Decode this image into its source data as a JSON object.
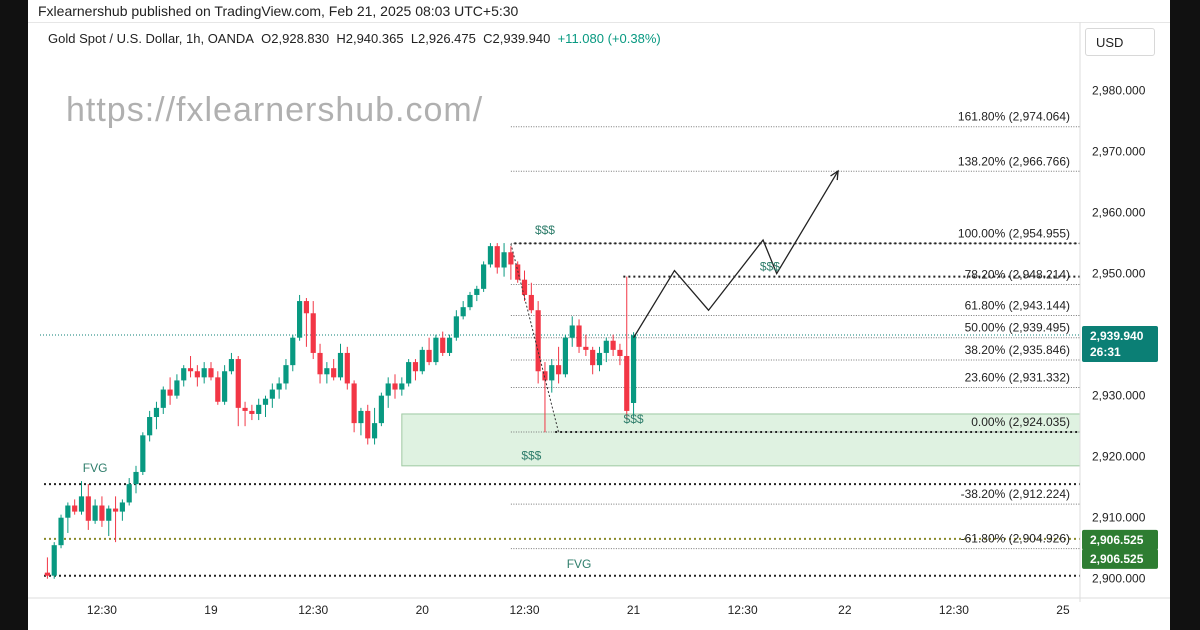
{
  "header": {
    "publish_line": "Fxlearnershub published on TradingView.com, Feb 21, 2025 08:03 UTC+5:30"
  },
  "chart_data": {
    "type": "candlestick",
    "symbol": "Gold Spot / U.S. Dollar, 1h, OANDA",
    "ohlc_text": {
      "o": "O2,928.830",
      "h": "H2,940.365",
      "l": "L2,926.475",
      "c": "C2,939.940",
      "change": "+11.080 (+0.38%)"
    },
    "currency": "USD",
    "watermark": "https://fxlearnershub.com/",
    "ylim": [
      2897.5,
      2985
    ],
    "y_ticks": [
      "2,900.000",
      "2,910.000",
      "2,920.000",
      "2,930.000",
      "2,940.000",
      "2,950.000",
      "2,960.000",
      "2,970.000",
      "2,980.000"
    ],
    "y_tick_values": [
      2900,
      2910,
      2920,
      2930,
      2940,
      2950,
      2960,
      2970,
      2980
    ],
    "x_ticks": [
      "12:30",
      "19",
      "12:30",
      "20",
      "12:30",
      "21",
      "12:30",
      "22",
      "12:30",
      "25"
    ],
    "x_tick_bars": [
      8,
      24,
      39,
      55,
      70,
      86,
      102,
      117,
      133,
      149
    ],
    "bar_range": [
      0,
      152
    ],
    "colors": {
      "up": "#089981",
      "down": "#f23645",
      "zone": "#dff2e1",
      "grid": "#555555"
    },
    "candles": [
      [
        2901.0,
        2903.5,
        2900.0,
        2900.5
      ],
      [
        2900.5,
        2906.0,
        2900.0,
        2905.5
      ],
      [
        2905.5,
        2910.5,
        2905.0,
        2910.0
      ],
      [
        2910.0,
        2912.5,
        2907.5,
        2912.0
      ],
      [
        2912.0,
        2913.0,
        2910.5,
        2911.0
      ],
      [
        2911.0,
        2916.0,
        2910.5,
        2913.5
      ],
      [
        2913.5,
        2915.5,
        2908.0,
        2909.5
      ],
      [
        2909.5,
        2913.0,
        2909.0,
        2912.0
      ],
      [
        2912.0,
        2913.5,
        2908.5,
        2909.5
      ],
      [
        2909.5,
        2912.0,
        2907.0,
        2911.5
      ],
      [
        2911.5,
        2913.5,
        2906.0,
        2911.0
      ],
      [
        2911.0,
        2913.0,
        2909.5,
        2912.5
      ],
      [
        2912.5,
        2916.5,
        2912.0,
        2915.5
      ],
      [
        2915.5,
        2918.5,
        2914.0,
        2917.5
      ],
      [
        2917.5,
        2924.0,
        2917.0,
        2923.5
      ],
      [
        2923.5,
        2927.5,
        2922.5,
        2926.5
      ],
      [
        2926.5,
        2929.0,
        2924.5,
        2928.0
      ],
      [
        2928.0,
        2931.5,
        2927.0,
        2931.0
      ],
      [
        2931.0,
        2933.0,
        2928.5,
        2930.0
      ],
      [
        2930.0,
        2933.5,
        2929.5,
        2932.5
      ],
      [
        2932.5,
        2935.0,
        2931.5,
        2934.5
      ],
      [
        2934.5,
        2936.5,
        2933.0,
        2934.0
      ],
      [
        2934.0,
        2935.0,
        2931.5,
        2933.0
      ],
      [
        2933.0,
        2935.5,
        2932.0,
        2934.5
      ],
      [
        2934.5,
        2935.5,
        2932.5,
        2933.0
      ],
      [
        2933.0,
        2934.0,
        2928.5,
        2929.0
      ],
      [
        2929.0,
        2935.0,
        2928.5,
        2934.0
      ],
      [
        2934.0,
        2937.0,
        2933.5,
        2936.0
      ],
      [
        2936.0,
        2936.5,
        2925.0,
        2928.0
      ],
      [
        2928.0,
        2929.0,
        2925.0,
        2927.5
      ],
      [
        2927.5,
        2928.5,
        2926.0,
        2927.0
      ],
      [
        2927.0,
        2929.5,
        2926.0,
        2928.5
      ],
      [
        2928.5,
        2930.0,
        2926.5,
        2929.5
      ],
      [
        2929.5,
        2932.0,
        2928.0,
        2931.0
      ],
      [
        2931.0,
        2933.0,
        2929.5,
        2932.0
      ],
      [
        2932.0,
        2936.0,
        2931.0,
        2935.0
      ],
      [
        2935.0,
        2940.0,
        2934.0,
        2939.5
      ],
      [
        2939.5,
        2946.5,
        2939.0,
        2945.5
      ],
      [
        2945.5,
        2946.0,
        2938.0,
        2943.5
      ],
      [
        2943.5,
        2945.5,
        2936.0,
        2937.0
      ],
      [
        2937.0,
        2938.5,
        2932.0,
        2933.5
      ],
      [
        2933.5,
        2935.5,
        2932.0,
        2934.5
      ],
      [
        2934.5,
        2936.0,
        2932.5,
        2933.0
      ],
      [
        2933.0,
        2938.5,
        2932.5,
        2937.0
      ],
      [
        2937.0,
        2938.0,
        2931.0,
        2932.0
      ],
      [
        2932.0,
        2932.5,
        2924.0,
        2925.5
      ],
      [
        2925.5,
        2928.0,
        2923.5,
        2927.5
      ],
      [
        2927.5,
        2928.5,
        2922.0,
        2923.0
      ],
      [
        2923.0,
        2928.0,
        2922.0,
        2925.5
      ],
      [
        2925.5,
        2930.5,
        2925.0,
        2930.0
      ],
      [
        2930.0,
        2933.0,
        2928.0,
        2932.0
      ],
      [
        2932.0,
        2933.5,
        2929.5,
        2931.0
      ],
      [
        2931.0,
        2933.0,
        2930.0,
        2932.0
      ],
      [
        2932.0,
        2936.0,
        2931.5,
        2935.5
      ],
      [
        2935.5,
        2936.0,
        2932.5,
        2934.0
      ],
      [
        2934.0,
        2938.0,
        2933.5,
        2937.5
      ],
      [
        2937.5,
        2939.5,
        2935.0,
        2935.5
      ],
      [
        2935.5,
        2940.0,
        2935.0,
        2939.5
      ],
      [
        2939.5,
        2940.5,
        2936.5,
        2937.0
      ],
      [
        2937.0,
        2940.0,
        2936.5,
        2939.5
      ],
      [
        2939.5,
        2944.0,
        2939.0,
        2943.0
      ],
      [
        2943.0,
        2945.5,
        2942.5,
        2944.5
      ],
      [
        2944.5,
        2947.0,
        2944.0,
        2946.5
      ],
      [
        2946.5,
        2948.0,
        2945.5,
        2947.5
      ],
      [
        2947.5,
        2952.0,
        2947.0,
        2951.5
      ],
      [
        2951.5,
        2955.0,
        2951.0,
        2954.5
      ],
      [
        2954.5,
        2955.0,
        2950.0,
        2951.0
      ],
      [
        2951.0,
        2955.0,
        2949.5,
        2953.5
      ],
      [
        2953.5,
        2954.5,
        2949.0,
        2951.5
      ],
      [
        2951.5,
        2952.0,
        2948.5,
        2949.0
      ],
      [
        2949.0,
        2950.5,
        2945.5,
        2946.5
      ],
      [
        2946.5,
        2948.5,
        2943.5,
        2944.0
      ],
      [
        2944.0,
        2945.5,
        2932.0,
        2934.0
      ],
      [
        2934.0,
        2935.5,
        2924.0,
        2932.5
      ],
      [
        2932.5,
        2936.0,
        2930.5,
        2935.0
      ],
      [
        2935.0,
        2938.0,
        2932.0,
        2933.5
      ],
      [
        2933.5,
        2940.0,
        2933.0,
        2939.5
      ],
      [
        2939.5,
        2943.0,
        2938.0,
        2941.5
      ],
      [
        2941.5,
        2942.5,
        2937.0,
        2938.0
      ],
      [
        2938.0,
        2940.0,
        2936.5,
        2937.5
      ],
      [
        2937.5,
        2938.0,
        2933.5,
        2935.0
      ],
      [
        2935.0,
        2938.0,
        2934.0,
        2937.0
      ],
      [
        2937.0,
        2939.5,
        2935.5,
        2939.0
      ],
      [
        2939.0,
        2940.0,
        2936.5,
        2937.5
      ],
      [
        2937.5,
        2938.5,
        2935.0,
        2936.5
      ],
      [
        2936.5,
        2949.5,
        2926.0,
        2927.5
      ],
      [
        2928.8,
        2940.4,
        2926.5,
        2939.9
      ]
    ],
    "fib_levels": [
      {
        "label": "161.80% (2,974.064)",
        "price": 2974.064
      },
      {
        "label": "138.20% (2,966.766)",
        "price": 2966.766
      },
      {
        "label": "100.00% (2,954.955)",
        "price": 2954.955
      },
      {
        "label": "78.20% (2,948.214)",
        "price": 2948.214
      },
      {
        "label": "61.80% (2,943.144)",
        "price": 2943.144
      },
      {
        "label": "50.00% (2,939.495)",
        "price": 2939.495
      },
      {
        "label": "38.20% (2,935.846)",
        "price": 2935.846
      },
      {
        "label": "23.60% (2,931.332)",
        "price": 2931.332
      },
      {
        "label": "0.00% (2,924.035)",
        "price": 2924.035
      },
      {
        "label": "-38.20% (2,912.224)",
        "price": 2912.224
      },
      {
        "label": "-61.80% (2,904.926)",
        "price": 2904.926
      }
    ],
    "fib_start_bar": 68,
    "fib_end_bar": 152,
    "dotted_levels": [
      {
        "price": 2954.955,
        "from_bar": 69,
        "to_bar": 152
      },
      {
        "price": 2949.5,
        "from_bar": 85,
        "to_bar": 152
      },
      {
        "price": 2924.035,
        "from_bar": 75,
        "to_bar": 152
      },
      {
        "price": 2915.5,
        "from_bar": 0,
        "to_bar": 152
      },
      {
        "price": 2906.525,
        "from_bar": 0,
        "to_bar": 152,
        "color": "#8a8a2a"
      },
      {
        "price": 2900.5,
        "from_bar": 0,
        "to_bar": 152
      }
    ],
    "zone": {
      "top": 2927.0,
      "bottom": 2918.5,
      "from_bar": 52,
      "to_bar": 152
    },
    "current_price_line": {
      "price": 2939.94,
      "from_bar": 0,
      "to_bar": 152
    },
    "projection_path": [
      {
        "bar": 86,
        "price": 2939.5
      },
      {
        "bar": 92,
        "price": 2950.5
      },
      {
        "bar": 97,
        "price": 2944.0
      },
      {
        "bar": 105,
        "price": 2955.5
      },
      {
        "bar": 107,
        "price": 2950.0
      },
      {
        "bar": 116,
        "price": 2966.8
      }
    ],
    "swing_line": [
      {
        "bar": 68,
        "price": 2954.9
      },
      {
        "bar": 75,
        "price": 2924.0
      }
    ],
    "annotations": [
      {
        "text": "$$$",
        "bar": 73,
        "price": 2956.5
      },
      {
        "text": "$$$",
        "bar": 106,
        "price": 2950.5
      },
      {
        "text": "$$$",
        "bar": 86,
        "price": 2925.5
      },
      {
        "text": "$$$",
        "bar": 71,
        "price": 2919.5
      },
      {
        "text": "FVG",
        "bar": 7,
        "price": 2917.5
      },
      {
        "text": "FVG",
        "bar": 78,
        "price": 2901.8
      }
    ],
    "price_labels": [
      {
        "price": 2939.94,
        "lines": [
          "2,939.940",
          "26:31"
        ],
        "color": "#0b7f75"
      },
      {
        "price": 2906.525,
        "lines": [
          "2,906.525"
        ],
        "color": "#2e7d32"
      },
      {
        "price": 2906.525,
        "lines": [
          "2,906.525"
        ],
        "color": "#2e7d32",
        "below": true
      }
    ]
  }
}
